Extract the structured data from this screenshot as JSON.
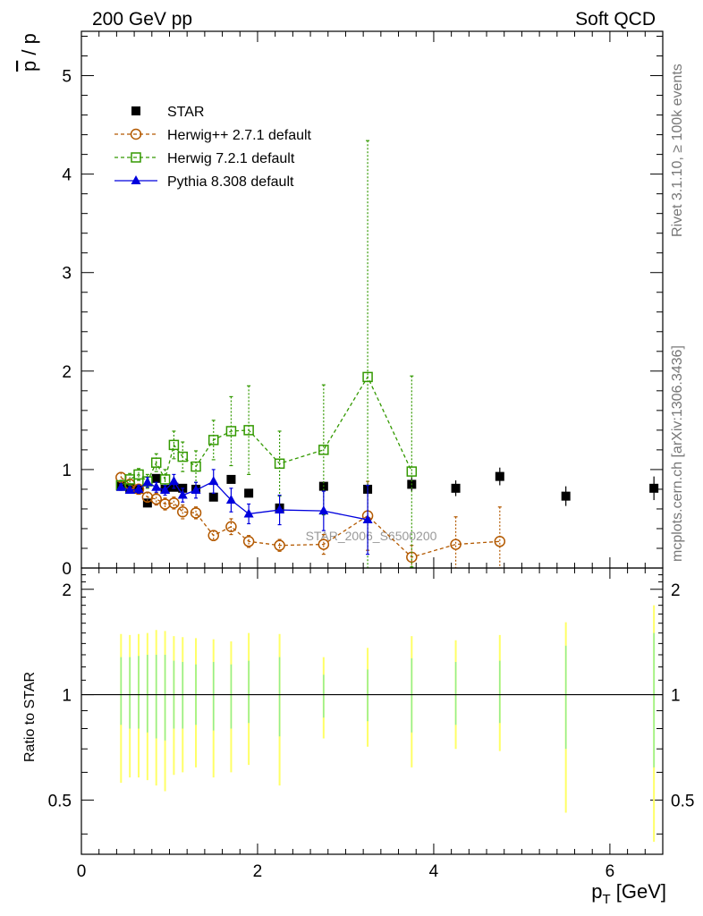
{
  "header": {
    "left": "200 GeV pp",
    "right": "Soft QCD"
  },
  "side_text": {
    "top": "Rivet 3.1.10, ≥ 100k events",
    "bottom": "mcplots.cern.ch [arXiv:1306.3436]"
  },
  "colors": {
    "star": "#000000",
    "herwig_pp": "#b35900",
    "herwig7": "#339900",
    "pythia": "#0000dd",
    "ratio_band_inner": "#90ee90",
    "ratio_band_outer": "#ffff66"
  },
  "chart_data": [
    {
      "type": "scatter",
      "title": "",
      "xlabel": "p_T [GeV]",
      "ylabel": "p̅ / p",
      "ylabel_overbar": "p",
      "ylabel_rest": " / p",
      "watermark": "STAR_2006_S6500200",
      "xlim": [
        0,
        6.6
      ],
      "ylim": [
        0,
        5.45
      ],
      "yticks": [
        0,
        1,
        2,
        3,
        4,
        5
      ],
      "grid": false,
      "legend_position": "top-left",
      "series": [
        {
          "name": "STAR",
          "marker": "filled-square",
          "line": "none",
          "x": [
            0.45,
            0.55,
            0.65,
            0.75,
            0.85,
            0.95,
            1.05,
            1.15,
            1.3,
            1.5,
            1.7,
            1.9,
            2.25,
            2.75,
            3.25,
            3.75,
            4.25,
            4.75,
            5.5,
            6.5
          ],
          "y": [
            0.83,
            0.81,
            0.8,
            0.66,
            0.91,
            0.8,
            0.82,
            0.81,
            0.8,
            0.72,
            0.9,
            0.76,
            0.61,
            0.83,
            0.8,
            0.85,
            0.81,
            0.93,
            0.73,
            0.81
          ],
          "yerr": [
            0.02,
            0.02,
            0.02,
            0.02,
            0.03,
            0.03,
            0.03,
            0.03,
            0.03,
            0.03,
            0.03,
            0.04,
            0.04,
            0.05,
            0.06,
            0.07,
            0.08,
            0.09,
            0.1,
            0.12
          ]
        },
        {
          "name": "Herwig++ 2.7.1 default",
          "marker": "open-circle",
          "line": "dashed",
          "x": [
            0.45,
            0.55,
            0.65,
            0.75,
            0.85,
            0.95,
            1.05,
            1.15,
            1.3,
            1.5,
            1.7,
            1.9,
            2.25,
            2.75,
            3.25,
            3.75,
            4.25,
            4.75
          ],
          "y": [
            0.92,
            0.85,
            0.8,
            0.72,
            0.7,
            0.65,
            0.66,
            0.57,
            0.56,
            0.33,
            0.42,
            0.27,
            0.23,
            0.24,
            0.53,
            0.11,
            0.24,
            0.27
          ],
          "yerr": [
            0.05,
            0.05,
            0.05,
            0.05,
            0.06,
            0.06,
            0.06,
            0.07,
            0.06,
            0.05,
            0.08,
            0.06,
            0.06,
            0.1,
            0.35,
            0.12,
            0.28,
            0.35
          ]
        },
        {
          "name": "Herwig 7.2.1 default",
          "marker": "open-square",
          "line": "dashed",
          "x": [
            0.45,
            0.55,
            0.65,
            0.75,
            0.85,
            0.95,
            1.05,
            1.15,
            1.3,
            1.5,
            1.7,
            1.9,
            2.25,
            2.75,
            3.25,
            3.75
          ],
          "y": [
            0.84,
            0.9,
            0.95,
            0.88,
            1.07,
            0.9,
            1.25,
            1.13,
            1.03,
            1.3,
            1.39,
            1.4,
            1.06,
            1.2,
            1.94,
            0.98
          ],
          "yerr": [
            0.05,
            0.06,
            0.06,
            0.07,
            0.09,
            0.1,
            0.14,
            0.15,
            0.16,
            0.2,
            0.35,
            0.45,
            0.33,
            0.66,
            2.4,
            0.97
          ]
        },
        {
          "name": "Pythia 8.308 default",
          "marker": "filled-triangle",
          "line": "solid",
          "x": [
            0.45,
            0.55,
            0.65,
            0.75,
            0.85,
            0.95,
            1.05,
            1.15,
            1.3,
            1.5,
            1.7,
            1.9,
            2.25,
            2.75,
            3.25
          ],
          "y": [
            0.82,
            0.79,
            0.8,
            0.87,
            0.82,
            0.79,
            0.88,
            0.74,
            0.79,
            0.88,
            0.69,
            0.55,
            0.59,
            0.58,
            0.49
          ],
          "yerr": [
            0.03,
            0.03,
            0.04,
            0.05,
            0.05,
            0.05,
            0.07,
            0.07,
            0.08,
            0.12,
            0.12,
            0.1,
            0.15,
            0.2,
            0.35
          ]
        }
      ]
    },
    {
      "type": "scatter",
      "title": "",
      "xlabel": "p_T [GeV]",
      "ylabel": "Ratio to STAR",
      "xlim": [
        0,
        6.6
      ],
      "ylim": [
        0.35,
        2.3
      ],
      "yticks": [
        0.5,
        1,
        2
      ],
      "xticks": [
        0,
        2,
        4,
        6
      ],
      "grid": false,
      "reference_line": 1,
      "bands": {
        "x": [
          0.45,
          0.55,
          0.65,
          0.75,
          0.85,
          0.95,
          1.05,
          1.15,
          1.3,
          1.5,
          1.7,
          1.9,
          2.25,
          2.75,
          3.25,
          3.75,
          4.25,
          4.75,
          5.5,
          6.5
        ],
        "outer_low": [
          0.56,
          0.58,
          0.58,
          0.57,
          0.55,
          0.53,
          0.59,
          0.6,
          0.62,
          0.58,
          0.6,
          0.63,
          0.55,
          0.75,
          0.71,
          0.62,
          0.7,
          0.69,
          0.46,
          0.38
        ],
        "outer_high": [
          1.49,
          1.48,
          1.49,
          1.5,
          1.53,
          1.52,
          1.47,
          1.46,
          1.45,
          1.44,
          1.42,
          1.5,
          1.49,
          1.28,
          1.36,
          1.47,
          1.43,
          1.48,
          1.61,
          1.8
        ],
        "inner_low": [
          0.82,
          0.8,
          0.8,
          0.78,
          0.75,
          0.74,
          0.8,
          0.8,
          0.82,
          0.79,
          0.8,
          0.83,
          0.76,
          0.86,
          0.84,
          0.78,
          0.82,
          0.83,
          0.7,
          0.62
        ],
        "inner_high": [
          1.28,
          1.28,
          1.29,
          1.3,
          1.3,
          1.3,
          1.25,
          1.24,
          1.22,
          1.24,
          1.22,
          1.25,
          1.28,
          1.14,
          1.18,
          1.27,
          1.24,
          1.25,
          1.38,
          1.5
        ]
      }
    }
  ]
}
